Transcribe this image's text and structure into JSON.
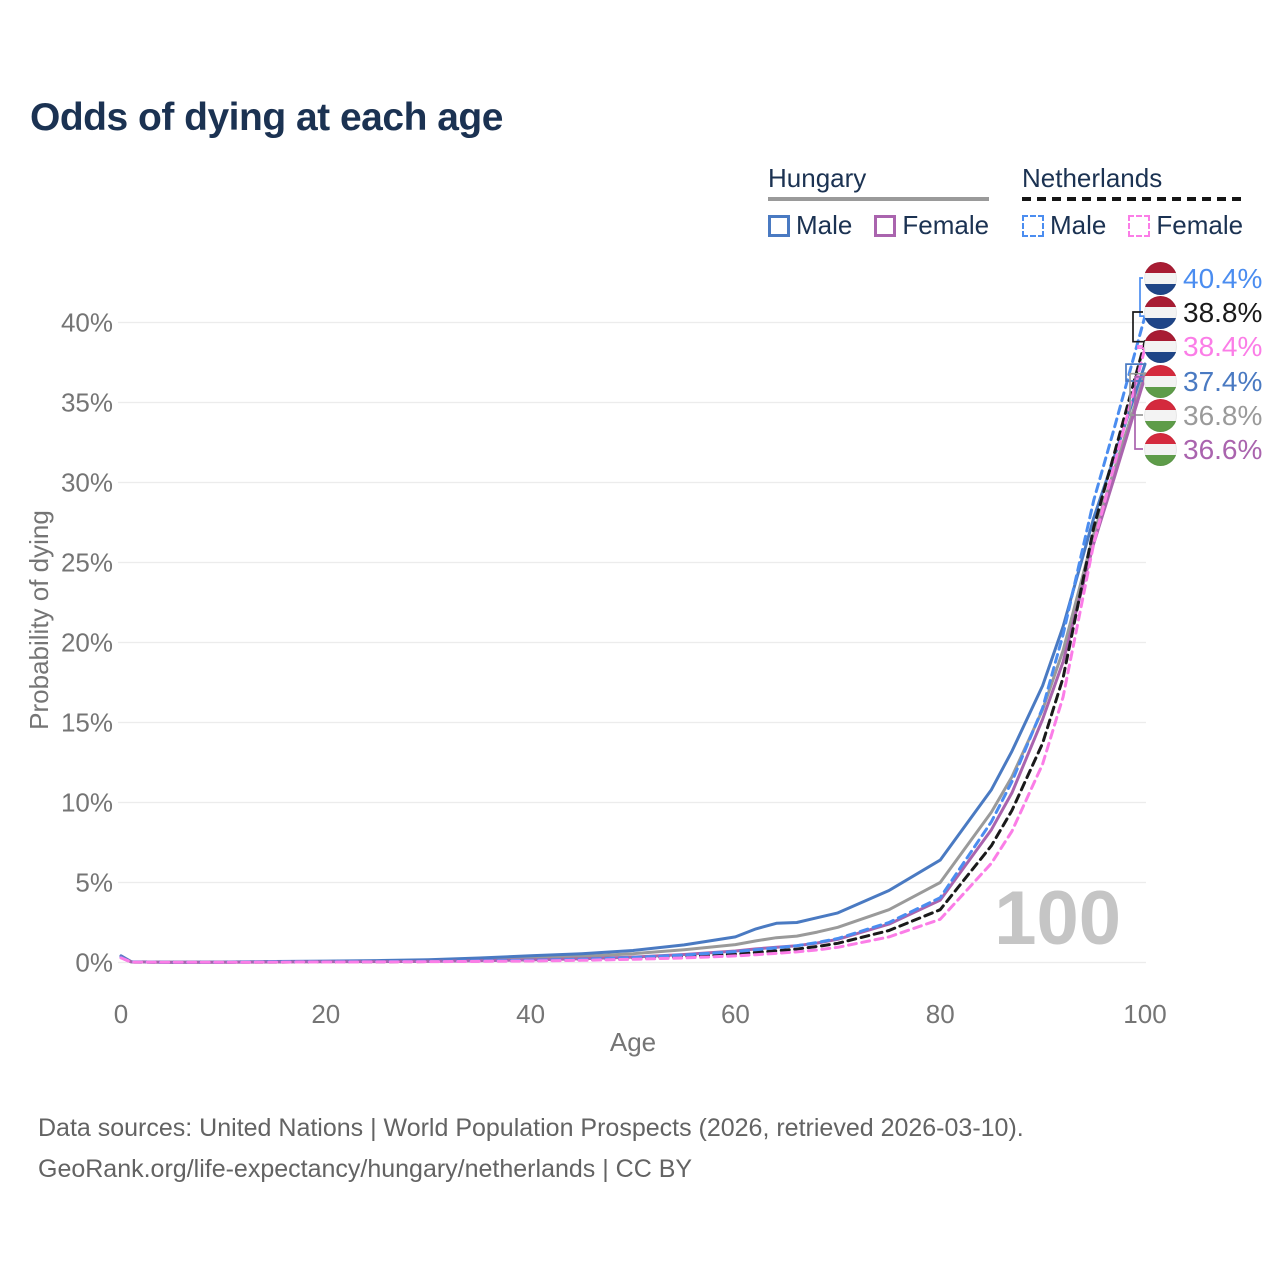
{
  "title": "Odds of dying at each age",
  "legend": {
    "groups": [
      {
        "country": "Hungary",
        "line_style": "solid",
        "underline_color": "#9a9a9a",
        "items": [
          {
            "label": "Male",
            "color": "#4a7ac2"
          },
          {
            "label": "Female",
            "color": "#aa64ae"
          }
        ]
      },
      {
        "country": "Netherlands",
        "line_style": "dashed",
        "underline_color": "#151515",
        "items": [
          {
            "label": "Male",
            "color": "#4b8df0"
          },
          {
            "label": "Female",
            "color": "#fb7de7"
          }
        ]
      }
    ]
  },
  "chart_data": {
    "type": "line",
    "title": "Odds of dying at each age",
    "xlabel": "Age",
    "ylabel": "Probability of dying",
    "x_ticks": [
      0,
      20,
      40,
      60,
      80,
      100
    ],
    "y_ticks_percent": [
      0,
      5,
      10,
      15,
      20,
      25,
      30,
      35,
      40
    ],
    "xlim": [
      0,
      100
    ],
    "ylim_percent": [
      0,
      40.5
    ],
    "grid": "horizontal",
    "watermark": "100",
    "x": [
      0,
      1,
      5,
      10,
      15,
      20,
      25,
      30,
      35,
      40,
      45,
      50,
      55,
      60,
      62,
      64,
      66,
      68,
      70,
      75,
      80,
      85,
      87,
      90,
      92,
      95,
      97,
      100
    ],
    "series": [
      {
        "name": "Hungary both sexes",
        "country": "Hungary",
        "sex": "Both",
        "style": "solid",
        "color": "#9a9a9a",
        "end_value_percent": 36.8,
        "values_percent": [
          0.38,
          0.04,
          0.018,
          0.025,
          0.045,
          0.065,
          0.085,
          0.12,
          0.19,
          0.28,
          0.38,
          0.55,
          0.8,
          1.12,
          1.35,
          1.55,
          1.65,
          1.9,
          2.2,
          3.3,
          5.0,
          9.4,
          11.6,
          15.8,
          19.5,
          26.8,
          30.8,
          36.8
        ]
      },
      {
        "name": "Hungary Male",
        "country": "Hungary",
        "sex": "Male",
        "style": "solid",
        "color": "#4a7ac2",
        "end_value_percent": 37.4,
        "values_percent": [
          0.42,
          0.05,
          0.02,
          0.03,
          0.06,
          0.09,
          0.12,
          0.17,
          0.28,
          0.42,
          0.55,
          0.75,
          1.1,
          1.6,
          2.1,
          2.45,
          2.5,
          2.8,
          3.1,
          4.5,
          6.4,
          10.8,
          13.2,
          17.3,
          21.0,
          27.8,
          31.6,
          37.4
        ]
      },
      {
        "name": "Hungary Female",
        "country": "Hungary",
        "sex": "Female",
        "style": "solid",
        "color": "#aa64ae",
        "end_value_percent": 36.6,
        "values_percent": [
          0.35,
          0.035,
          0.015,
          0.02,
          0.03,
          0.045,
          0.055,
          0.07,
          0.11,
          0.16,
          0.23,
          0.34,
          0.5,
          0.72,
          0.85,
          0.95,
          1.05,
          1.22,
          1.45,
          2.4,
          3.9,
          8.3,
          10.6,
          15.2,
          18.8,
          26.2,
          30.3,
          36.6
        ]
      },
      {
        "name": "Netherlands both sexes",
        "country": "Netherlands",
        "sex": "Both",
        "style": "dashed",
        "color": "#1a1a1a",
        "end_value_percent": 38.8,
        "values_percent": [
          0.31,
          0.028,
          0.013,
          0.017,
          0.028,
          0.04,
          0.045,
          0.06,
          0.085,
          0.115,
          0.165,
          0.25,
          0.37,
          0.53,
          0.63,
          0.73,
          0.84,
          1.0,
          1.2,
          2.0,
          3.3,
          7.3,
          9.5,
          13.7,
          17.8,
          27.2,
          31.8,
          38.8
        ]
      },
      {
        "name": "Netherlands Male",
        "country": "Netherlands",
        "sex": "Male",
        "style": "dashed",
        "color": "#4b8df0",
        "end_value_percent": 40.4,
        "values_percent": [
          0.33,
          0.03,
          0.015,
          0.02,
          0.035,
          0.05,
          0.055,
          0.07,
          0.1,
          0.14,
          0.2,
          0.31,
          0.47,
          0.68,
          0.8,
          0.92,
          1.05,
          1.25,
          1.5,
          2.5,
          4.05,
          8.8,
          11.3,
          15.9,
          20.5,
          28.9,
          33.4,
          40.4
        ]
      },
      {
        "name": "Netherlands Female",
        "country": "Netherlands",
        "sex": "Female",
        "style": "dashed",
        "color": "#fb7de7",
        "end_value_percent": 38.4,
        "values_percent": [
          0.29,
          0.026,
          0.012,
          0.015,
          0.022,
          0.032,
          0.04,
          0.05,
          0.07,
          0.095,
          0.135,
          0.2,
          0.29,
          0.41,
          0.49,
          0.57,
          0.66,
          0.79,
          0.95,
          1.6,
          2.7,
          6.2,
          8.2,
          12.4,
          16.6,
          26.2,
          31.1,
          38.4
        ]
      }
    ],
    "end_labels": [
      {
        "text": "40.4%",
        "flag": "Netherlands",
        "series": "Netherlands Male",
        "color": "#4b8df0",
        "value_percent": 40.4
      },
      {
        "text": "38.8%",
        "flag": "Netherlands",
        "series": "Netherlands both sexes",
        "color": "#1a1a1a",
        "value_percent": 38.8
      },
      {
        "text": "38.4%",
        "flag": "Netherlands",
        "series": "Netherlands Female",
        "color": "#fb7de7",
        "value_percent": 38.4
      },
      {
        "text": "37.4%",
        "flag": "Hungary",
        "series": "Hungary Male",
        "color": "#4a7ac2",
        "value_percent": 37.4
      },
      {
        "text": "36.8%",
        "flag": "Hungary",
        "series": "Hungary both sexes",
        "color": "#9a9a9a",
        "value_percent": 36.8
      },
      {
        "text": "36.6%",
        "flag": "Hungary",
        "series": "Hungary Female",
        "color": "#aa64ae",
        "value_percent": 36.6
      }
    ]
  },
  "footer": {
    "line1": "Data sources: United Nations | World Population Prospects (2026, retrieved 2026-03-10).",
    "line2": "GeoRank.org/life-expectancy/hungary/netherlands | CC BY"
  },
  "colors": {
    "title": "#1b3252",
    "axis_text": "#757575",
    "gridline": "#ececec",
    "watermark": "#c5c5c5",
    "footer_text": "#636363"
  }
}
